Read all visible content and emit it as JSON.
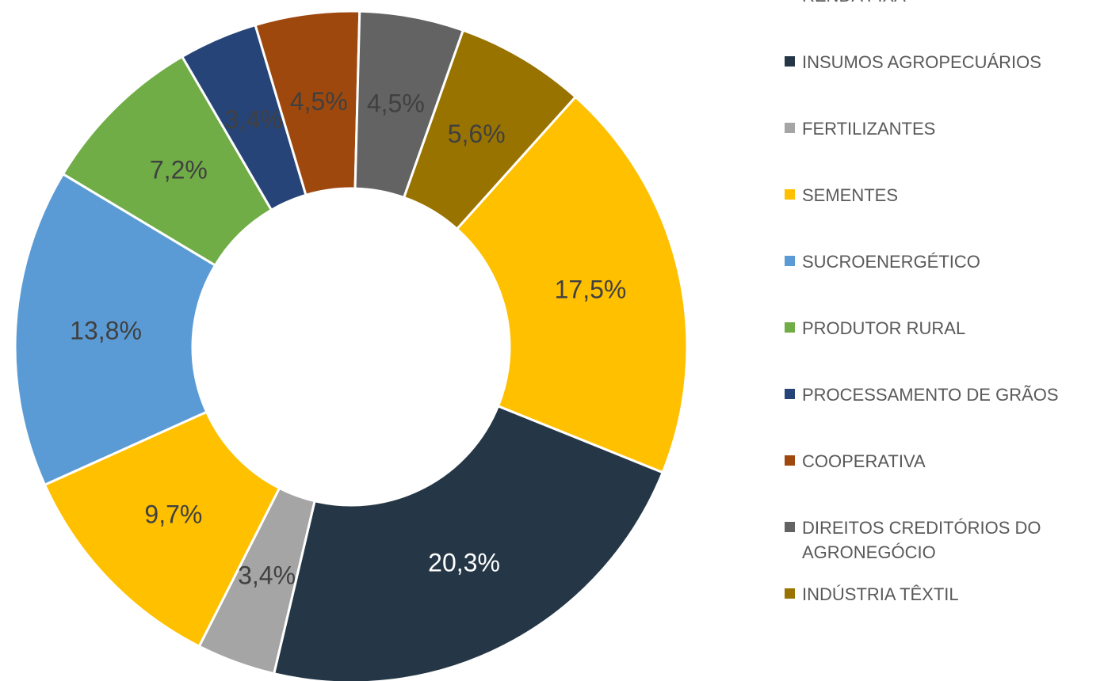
{
  "chart_data": {
    "type": "donut",
    "categories": [
      "RENDA FIXA",
      "INSUMOS AGROPECUÁRIOS",
      "FERTILIZANTES",
      "SEMENTES",
      "SUCROENERGÉTICO",
      "PRODUTOR RURAL",
      "PROCESSAMENTO DE GRÃOS",
      "COOPERATIVA",
      "DIREITOS CREDITÓRIOS DO AGRONEGÓCIO",
      "INDÚSTRIA TÊXTIL"
    ],
    "values": [
      17.5,
      20.3,
      3.4,
      9.7,
      13.8,
      7.2,
      3.4,
      4.5,
      4.5,
      5.6
    ],
    "value_labels": [
      "17,5%",
      "20,3%",
      "3,4%",
      "9,7%",
      "13,8%",
      "7,2%",
      "3,4%",
      "4,5%",
      "4,5%",
      "5,6%"
    ],
    "colors": [
      "#ffc000",
      "#253746",
      "#a5a5a5",
      "#ffc000",
      "#5b9bd5",
      "#70ad47",
      "#264478",
      "#9e480e",
      "#636363",
      "#997300"
    ],
    "legend": "right"
  }
}
